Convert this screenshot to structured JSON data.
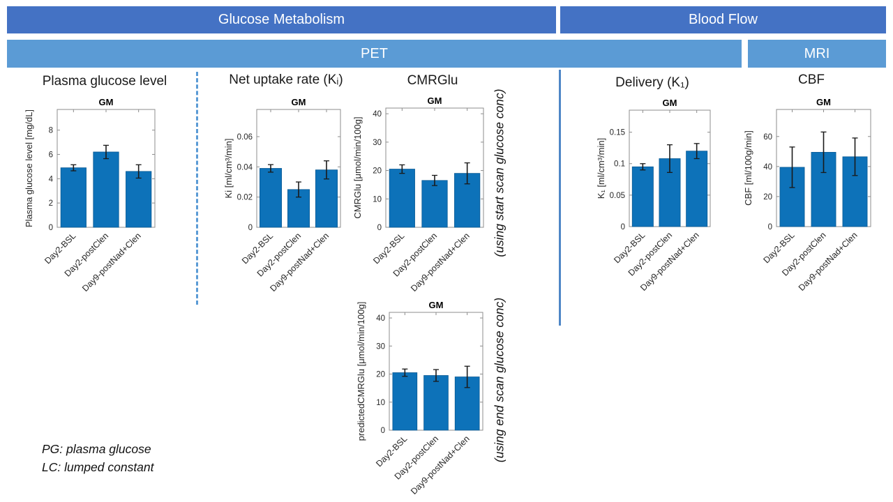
{
  "banners": {
    "glucose_metabolism": "Glucose Metabolism",
    "blood_flow": "Blood Flow",
    "pet": "PET",
    "mri": "MRI"
  },
  "colors": {
    "banner_dark": "#4472C4",
    "banner_light": "#5B9BD5",
    "bar": "#0d72b9",
    "bar_edge": "#0a5a94",
    "axis": "#8c8c8c",
    "tick_text": "#262626",
    "error_bar": "#1a1a1a",
    "divider_dashed": "#5B9BD5",
    "divider_solid": "#4e86c6"
  },
  "annotations": {
    "start_scan": "(using start scan glucose conc)",
    "end_scan": "(using end scan glucose conc)"
  },
  "footnotes": {
    "line1": "PG: plasma glucose",
    "line2": "LC: lumped constant"
  },
  "chart_data": [
    {
      "id": "plasma-glucose",
      "type": "bar",
      "title": "Plasma glucose level",
      "subplot_title": "GM",
      "ylabel": "Plasma glucose level [mg/dL]",
      "categories": [
        "Day2-BSL",
        "Day2-postClen",
        "Day9-postNad+Clen"
      ],
      "values": [
        4.9,
        6.2,
        4.6
      ],
      "errors": [
        0.25,
        0.55,
        0.55
      ],
      "yticks": [
        0,
        2,
        4,
        6,
        8
      ],
      "ylim": [
        0,
        9.7
      ]
    },
    {
      "id": "net-uptake-rate",
      "type": "bar",
      "title": "Net uptake rate (Kᵢ)",
      "subplot_title": "GM",
      "ylabel": "Ki [ml/cm³/min]",
      "categories": [
        "Day2-BSL",
        "Day2-postClen",
        "Day9-postNad+Clen"
      ],
      "values": [
        0.039,
        0.025,
        0.038
      ],
      "errors": [
        0.0025,
        0.005,
        0.006
      ],
      "yticks": [
        0,
        0.02,
        0.04,
        0.06
      ],
      "ylim": [
        0,
        0.078
      ]
    },
    {
      "id": "cmrglu",
      "type": "bar",
      "title": "CMRGlu",
      "subplot_title": "GM",
      "ylabel": "CMRGlu [μmol/min/100g]",
      "categories": [
        "Day2-BSL",
        "Day2-postClen",
        "Day9-postNad+Clen"
      ],
      "values": [
        20.5,
        16.5,
        19
      ],
      "errors": [
        1.5,
        1.8,
        3.7
      ],
      "yticks": [
        0,
        10,
        20,
        30,
        40
      ],
      "ylim": [
        0,
        42
      ]
    },
    {
      "id": "delivery-k1",
      "type": "bar",
      "title": "Delivery (K₁)",
      "subplot_title": "GM",
      "ylabel": "K₁ [ml/cm³/min]",
      "categories": [
        "Day2-BSL",
        "Day2-postClen",
        "Day9-postNad+Clen"
      ],
      "values": [
        0.095,
        0.108,
        0.12
      ],
      "errors": [
        0.005,
        0.022,
        0.012
      ],
      "yticks": [
        0,
        0.05,
        0.1,
        0.15
      ],
      "ylim": [
        0,
        0.185
      ]
    },
    {
      "id": "cbf",
      "type": "bar",
      "title": "CBF",
      "subplot_title": "GM",
      "ylabel": "CBF [ml/100g/min]",
      "categories": [
        "Day2-BSL",
        "Day2-postClen",
        "Day9-postNad+Clen"
      ],
      "values": [
        39.5,
        49.5,
        46.5
      ],
      "errors": [
        13.5,
        13.5,
        12.5
      ],
      "yticks": [
        0,
        20,
        40,
        60
      ],
      "ylim": [
        0,
        78
      ]
    },
    {
      "id": "predicted-cmrglu",
      "type": "bar",
      "title": "",
      "subplot_title": "GM",
      "ylabel": "predictedCMRGlu [μmol/min/100g]",
      "categories": [
        "Day2-BSL",
        "Day2-postClen",
        "Day9-postNad+Clen"
      ],
      "values": [
        20.5,
        19.5,
        19
      ],
      "errors": [
        1.3,
        2.1,
        3.8
      ],
      "yticks": [
        0,
        10,
        20,
        30,
        40
      ],
      "ylim": [
        0,
        42
      ]
    }
  ]
}
